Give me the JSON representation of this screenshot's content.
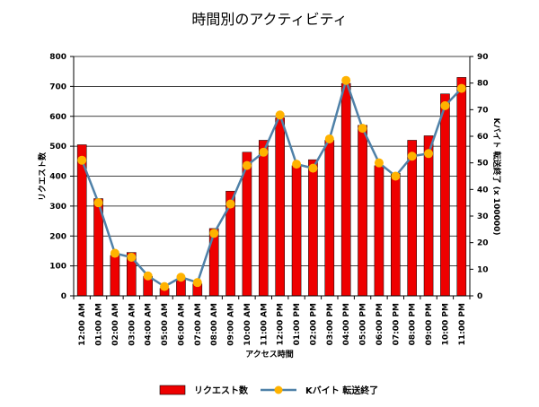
{
  "chart_data": {
    "type": "bar",
    "title": "時間別のアクティビティ",
    "xlabel": "アクセス時間",
    "ylabel": "リクエスト数",
    "y2label": "Kバイト 転送終了 (x 100000)",
    "categories": [
      "12:00 AM",
      "01:00 AM",
      "02:00 AM",
      "03:00 AM",
      "04:00 AM",
      "05:00 AM",
      "06:00 AM",
      "07:00 AM",
      "08:00 AM",
      "09:00 AM",
      "10:00 AM",
      "11:00 AM",
      "12:00 PM",
      "01:00 PM",
      "02:00 PM",
      "03:00 PM",
      "04:00 PM",
      "05:00 PM",
      "06:00 PM",
      "07:00 PM",
      "08:00 PM",
      "09:00 PM",
      "10:00 PM",
      "11:00 PM"
    ],
    "ylim": [
      0,
      800
    ],
    "yticks": [
      0,
      100,
      200,
      300,
      400,
      500,
      600,
      700,
      800
    ],
    "y2lim": [
      0,
      90
    ],
    "y2ticks": [
      0,
      10,
      20,
      30,
      40,
      50,
      60,
      70,
      80,
      90
    ],
    "grid": true,
    "legend_position": "bottom",
    "series": [
      {
        "name": "リクエスト数",
        "kind": "bar",
        "axis": "left",
        "color": "#ee0000",
        "values": [
          505,
          325,
          135,
          145,
          65,
          25,
          55,
          40,
          225,
          350,
          480,
          520,
          595,
          435,
          455,
          520,
          710,
          570,
          435,
          410,
          520,
          535,
          675,
          730
        ]
      },
      {
        "name": "Kバイト 転送終了",
        "kind": "line",
        "axis": "right",
        "color": "#4f81a8",
        "marker_color": "#ffb300",
        "values": [
          51,
          35,
          16,
          14.5,
          7.5,
          3.5,
          7,
          5,
          23.5,
          34.5,
          49,
          54,
          68,
          49.5,
          48,
          59,
          81,
          63,
          50,
          45,
          52.5,
          53.5,
          71.5,
          78
        ]
      }
    ]
  }
}
